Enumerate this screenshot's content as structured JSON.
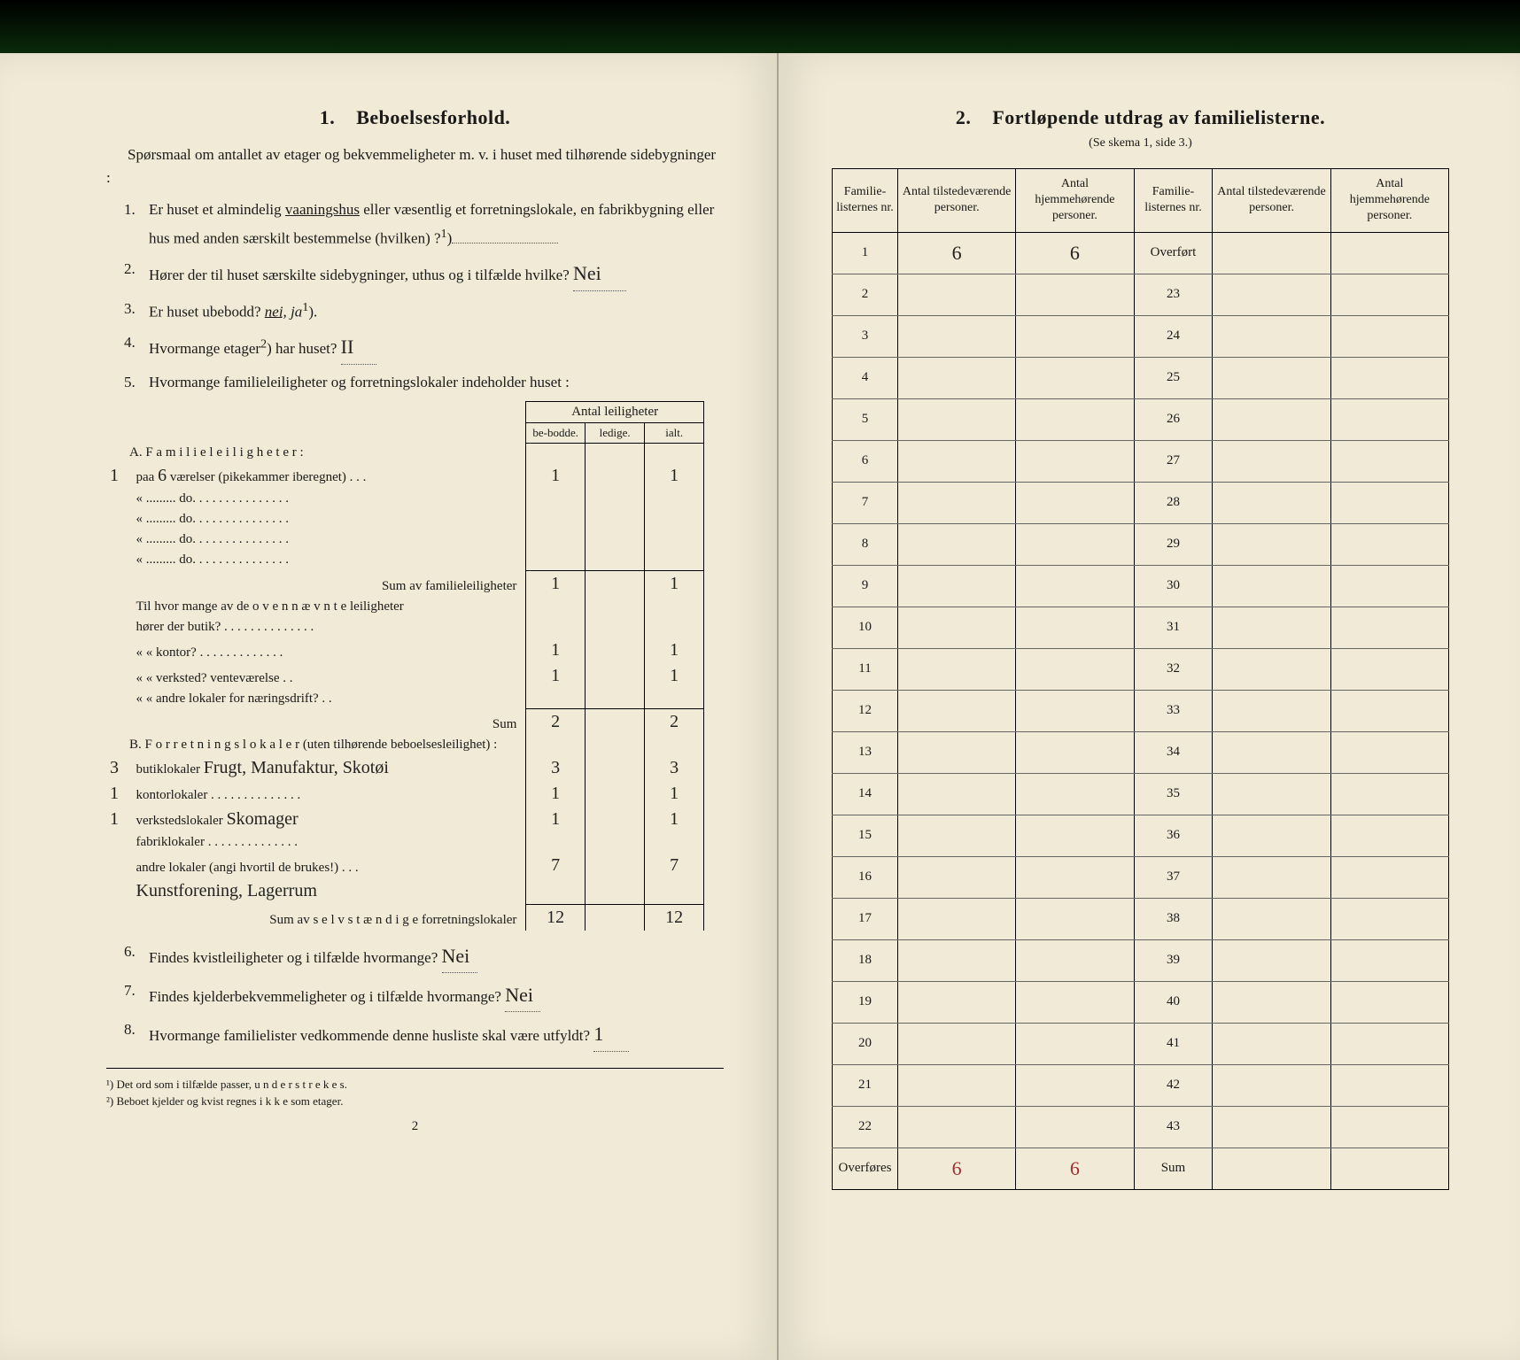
{
  "left": {
    "section_no": "1.",
    "section_title": "Beboelsesforhold.",
    "intro": "Spørsmaal om antallet av etager og bekvemmeligheter m. v. i huset med tilhørende sidebygninger :",
    "q1": {
      "num": "1.",
      "text_a": "Er huset et almindelig ",
      "underlined": "vaaningshus",
      "text_b": " eller væsentlig et forretningslokale, en fabrikbygning eller hus med anden særskilt bestemmelse (hvilken) ?",
      "sup": "1"
    },
    "q2": {
      "num": "2.",
      "text": "Hører der til huset særskilte sidebygninger, uthus og i tilfælde hvilke?",
      "answer": "Nei"
    },
    "q3": {
      "num": "3.",
      "text": "Er huset ubebodd?",
      "opt_nei": "nei,",
      "opt_ja": "ja",
      "sup": "1"
    },
    "q4": {
      "num": "4.",
      "text": "Hvormange etager",
      "sup": "2",
      "text_b": ") har huset?",
      "answer": "II"
    },
    "q5": {
      "num": "5.",
      "text": "Hvormange familieleiligheter og forretningslokaler indeholder huset :"
    },
    "ant_header": "Antal leiligheter",
    "cols": {
      "be": "be-bodde.",
      "ledige": "ledige.",
      "ialt": "ialt."
    },
    "A": {
      "title": "A. F a m i l i e l e i l i g h e t e r :",
      "margin": "1",
      "row1_a": "paa ",
      "row1_hw": "6",
      "row1_b": " værelser (pikekammer iberegnet)  .  .  .",
      "row1_be": "1",
      "row1_ialt": "1",
      "rows_do": [
        "«  .........        do.        .  .  .  .  .  .  .  .  .  .  .  .  .  .",
        "«  .........        do.        .  .  .  .  .  .  .  .  .  .  .  .  .  .",
        "«  .........        do.        .  .  .  .  .  .  .  .  .  .  .  .  .  .",
        "«  .........        do.        .  .  .  .  .  .  .  .  .  .  .  .  .  ."
      ],
      "sum_label": "Sum av familieleiligheter",
      "sum_be": "1",
      "sum_ialt": "1",
      "sub_intro": "Til hvor mange av de o v e n n æ v n t e leiligheter",
      "sub_rows": [
        {
          "label": "hører der butik?  .  .  .  .  .  .  .  .  .  .  .  .  .  .",
          "be": "",
          "ialt": ""
        },
        {
          "label": "«        «    kontor?   .  .  .  .  .  .  .  .  .  .  .  .  .",
          "be": "1",
          "ialt": "1"
        },
        {
          "label": "«        «    verksted?  venteværelse  .  .",
          "be": "1",
          "ialt": "1"
        },
        {
          "label": "«        «    andre lokaler for næringsdrift?  .  .",
          "be": "",
          "ialt": ""
        }
      ],
      "sub_sum_label": "Sum",
      "sub_sum_be": "2",
      "sub_sum_ialt": "2"
    },
    "B": {
      "title": "B. F o r r e t n i n g s l o k a l e r  (uten tilhørende beboelsesleilighet) :",
      "rows": [
        {
          "margin": "3",
          "label": "butiklokaler ",
          "hw": "Frugt, Manufaktur, Skotøi",
          "be": "3",
          "ialt": "3"
        },
        {
          "margin": "1",
          "label": "kontorlokaler  .  .  .  .  .  .  .  .  .  .  .  .  .  .",
          "hw": "",
          "be": "1",
          "ialt": "1"
        },
        {
          "margin": "1",
          "label": "verkstedslokaler ",
          "hw": "Skomager",
          "be": "1",
          "ialt": "1"
        },
        {
          "margin": "",
          "label": "fabriklokaler  .  .  .  .  .  .  .  .  .  .  .  .  .  .",
          "hw": "",
          "be": "",
          "ialt": ""
        },
        {
          "margin": "",
          "label": "andre lokaler (angi hvortil de brukes!)  .  .  .",
          "hw": "",
          "be": "7",
          "ialt": "7"
        },
        {
          "margin": "",
          "label": "",
          "hw": "Kunstforening, Lagerrum",
          "be": "",
          "ialt": ""
        }
      ],
      "sum_label": "Sum av s e l v s t æ n d i g e forretningslokaler",
      "sum_be": "12",
      "sum_ialt": "12"
    },
    "q6": {
      "num": "6.",
      "text": "Findes kvistleiligheter og i tilfælde hvormange?",
      "answer": "Nei"
    },
    "q7": {
      "num": "7.",
      "text": "Findes kjelderbekvemmeligheter og i tilfælde hvormange?",
      "answer": "Nei"
    },
    "q8": {
      "num": "8.",
      "text": "Hvormange familielister vedkommende denne husliste skal være utfyldt?",
      "answer": "1"
    },
    "footnotes": {
      "f1": "¹) Det ord som i tilfælde passer, u n d e r s t r e k e s.",
      "f2": "²) Beboet kjelder og kvist regnes  i k k e  som etager."
    },
    "pgnum": "2"
  },
  "right": {
    "section_no": "2.",
    "section_title": "Fortløpende utdrag av familielisterne.",
    "subtitle": "(Se skema 1, side 3.)",
    "headers": {
      "c1": "Familie-listernes nr.",
      "c2": "Antal tilstedeværende personer.",
      "c3": "Antal hjemmehørende personer.",
      "c4": "Familie-listernes nr.",
      "c5": "Antal tilstedeværende personer.",
      "c6": "Antal hjemmehørende personer."
    },
    "left_rows": [
      {
        "nr": "1",
        "a": "6",
        "b": "6"
      },
      {
        "nr": "2",
        "a": "",
        "b": ""
      },
      {
        "nr": "3",
        "a": "",
        "b": ""
      },
      {
        "nr": "4",
        "a": "",
        "b": ""
      },
      {
        "nr": "5",
        "a": "",
        "b": ""
      },
      {
        "nr": "6",
        "a": "",
        "b": ""
      },
      {
        "nr": "7",
        "a": "",
        "b": ""
      },
      {
        "nr": "8",
        "a": "",
        "b": ""
      },
      {
        "nr": "9",
        "a": "",
        "b": ""
      },
      {
        "nr": "10",
        "a": "",
        "b": ""
      },
      {
        "nr": "11",
        "a": "",
        "b": ""
      },
      {
        "nr": "12",
        "a": "",
        "b": ""
      },
      {
        "nr": "13",
        "a": "",
        "b": ""
      },
      {
        "nr": "14",
        "a": "",
        "b": ""
      },
      {
        "nr": "15",
        "a": "",
        "b": ""
      },
      {
        "nr": "16",
        "a": "",
        "b": ""
      },
      {
        "nr": "17",
        "a": "",
        "b": ""
      },
      {
        "nr": "18",
        "a": "",
        "b": ""
      },
      {
        "nr": "19",
        "a": "",
        "b": ""
      },
      {
        "nr": "20",
        "a": "",
        "b": ""
      },
      {
        "nr": "21",
        "a": "",
        "b": ""
      },
      {
        "nr": "22",
        "a": "",
        "b": ""
      }
    ],
    "right_rows": [
      {
        "nr": "Overført",
        "a": "",
        "b": ""
      },
      {
        "nr": "23",
        "a": "",
        "b": ""
      },
      {
        "nr": "24",
        "a": "",
        "b": ""
      },
      {
        "nr": "25",
        "a": "",
        "b": ""
      },
      {
        "nr": "26",
        "a": "",
        "b": ""
      },
      {
        "nr": "27",
        "a": "",
        "b": ""
      },
      {
        "nr": "28",
        "a": "",
        "b": ""
      },
      {
        "nr": "29",
        "a": "",
        "b": ""
      },
      {
        "nr": "30",
        "a": "",
        "b": ""
      },
      {
        "nr": "31",
        "a": "",
        "b": ""
      },
      {
        "nr": "32",
        "a": "",
        "b": ""
      },
      {
        "nr": "33",
        "a": "",
        "b": ""
      },
      {
        "nr": "34",
        "a": "",
        "b": ""
      },
      {
        "nr": "35",
        "a": "",
        "b": ""
      },
      {
        "nr": "36",
        "a": "",
        "b": ""
      },
      {
        "nr": "37",
        "a": "",
        "b": ""
      },
      {
        "nr": "38",
        "a": "",
        "b": ""
      },
      {
        "nr": "39",
        "a": "",
        "b": ""
      },
      {
        "nr": "40",
        "a": "",
        "b": ""
      },
      {
        "nr": "41",
        "a": "",
        "b": ""
      },
      {
        "nr": "42",
        "a": "",
        "b": ""
      },
      {
        "nr": "43",
        "a": "",
        "b": ""
      }
    ],
    "overfores": {
      "label": "Overføres",
      "a": "6",
      "b": "6",
      "sum_label": "Sum"
    }
  }
}
